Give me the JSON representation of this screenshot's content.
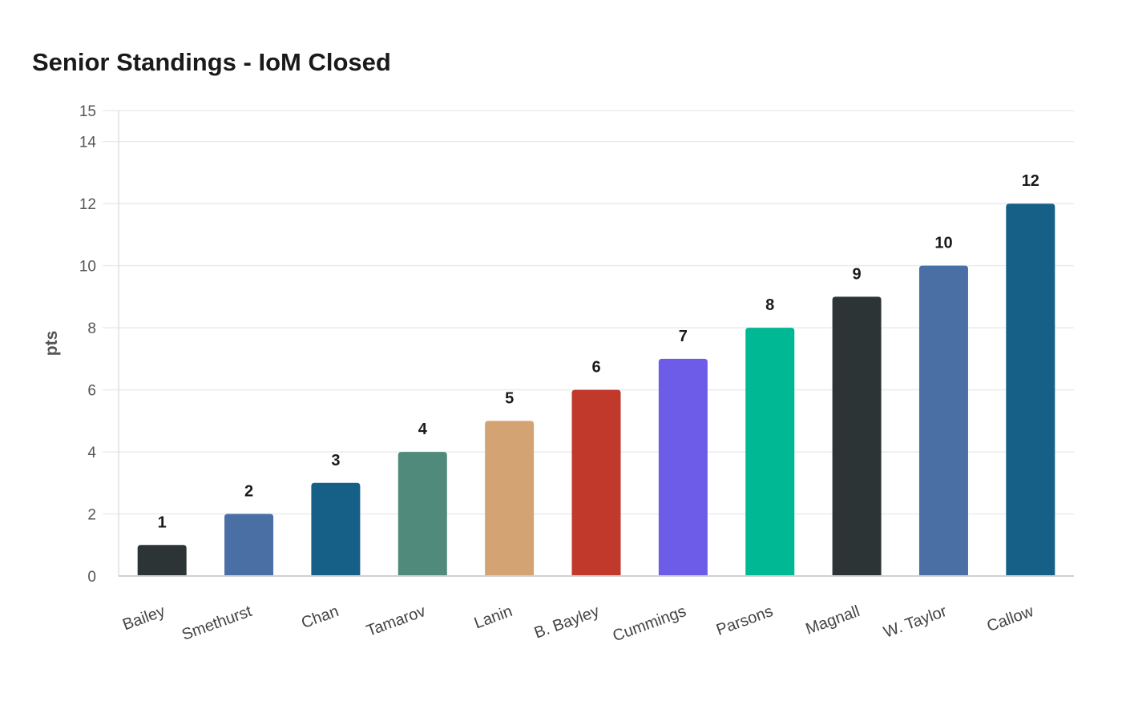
{
  "chart_data": {
    "type": "bar",
    "title": "Senior Standings - IoM Closed",
    "xlabel": "",
    "ylabel": "pts",
    "ylim": [
      0,
      15
    ],
    "yticks": [
      0,
      2,
      4,
      6,
      8,
      10,
      12,
      14,
      15
    ],
    "grid": true,
    "categories": [
      "Bailey",
      "Smethurst",
      "Chan",
      "Tamarov",
      "Lanin",
      "B. Bayley",
      "Cummings",
      "Parsons",
      "Magnall",
      "W. Taylor",
      "Callow"
    ],
    "values": [
      1,
      2,
      3,
      4,
      5,
      6,
      7,
      8,
      9,
      10,
      12
    ],
    "colors": [
      "#2d3436",
      "#4a6fa5",
      "#166088",
      "#4f8a7a",
      "#d4a373",
      "#c0392b",
      "#6c5ce7",
      "#00b894",
      "#2d3436",
      "#4a6fa5",
      "#166088"
    ]
  }
}
